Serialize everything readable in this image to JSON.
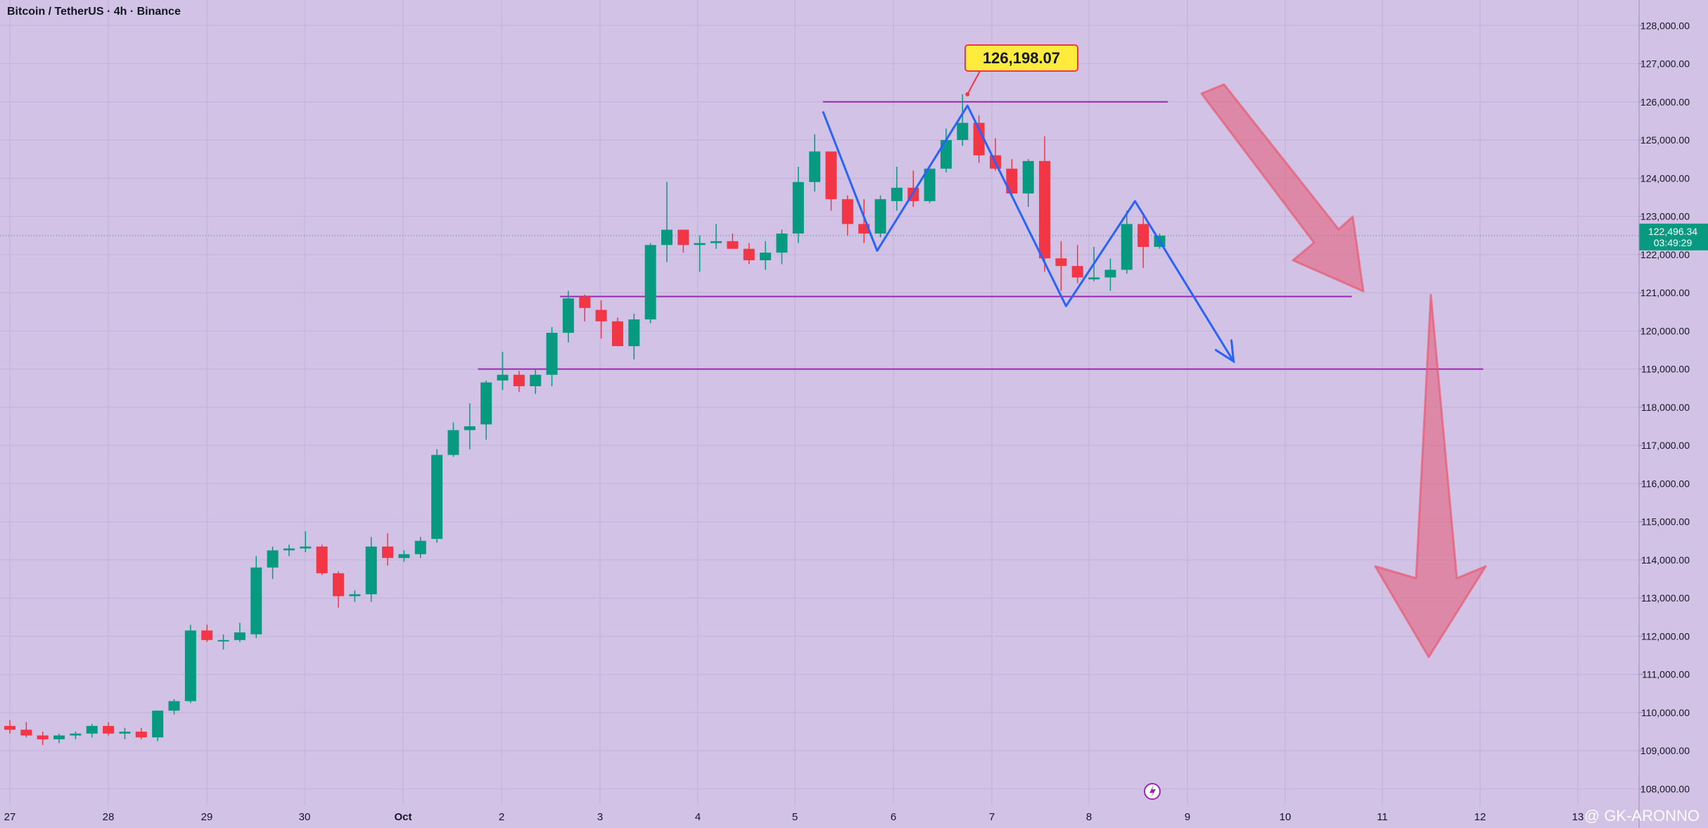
{
  "chart_title": "Bitcoin / TetherUS · 4h · Binance",
  "watermark": "@ GK-ARONNO",
  "colors": {
    "background": "#d1c2e6",
    "up": "#089981",
    "down": "#f23645",
    "pattern": "#2962ff",
    "level": "#9c27b0",
    "arrow": "#e85a72",
    "label_bg": "#ffeb3b",
    "price_tag": "#089981"
  },
  "chart_data": {
    "type": "candlestick",
    "ylim": [
      107750,
      128300
    ],
    "y_ticks": [
      "128,000.00",
      "127,000.00",
      "126,000.00",
      "125,000.00",
      "124,000.00",
      "123,000.00",
      "122,000.00",
      "121,000.00",
      "120,000.00",
      "119,000.00",
      "118,000.00",
      "117,000.00",
      "116,000.00",
      "115,000.00",
      "114,000.00",
      "113,000.00",
      "112,000.00",
      "111,000.00",
      "110,000.00",
      "109,000.00",
      "108,000.00"
    ],
    "x_ticks": [
      "27",
      "28",
      "29",
      "30",
      "Oct",
      "2",
      "3",
      "4",
      "5",
      "6",
      "7",
      "8",
      "9",
      "10",
      "11",
      "12",
      "13"
    ],
    "candles": [
      {
        "o": 109650,
        "h": 109800,
        "l": 109450,
        "c": 109550
      },
      {
        "o": 109550,
        "h": 109750,
        "l": 109350,
        "c": 109400
      },
      {
        "o": 109400,
        "h": 109500,
        "l": 109150,
        "c": 109300
      },
      {
        "o": 109300,
        "h": 109450,
        "l": 109200,
        "c": 109400
      },
      {
        "o": 109400,
        "h": 109500,
        "l": 109300,
        "c": 109450
      },
      {
        "o": 109450,
        "h": 109700,
        "l": 109350,
        "c": 109650
      },
      {
        "o": 109650,
        "h": 109750,
        "l": 109400,
        "c": 109450
      },
      {
        "o": 109450,
        "h": 109600,
        "l": 109300,
        "c": 109500
      },
      {
        "o": 109500,
        "h": 109600,
        "l": 109300,
        "c": 109350
      },
      {
        "o": 109350,
        "h": 110050,
        "l": 109250,
        "c": 110050
      },
      {
        "o": 110050,
        "h": 110350,
        "l": 109950,
        "c": 110300
      },
      {
        "o": 110300,
        "h": 112300,
        "l": 110250,
        "c": 112150
      },
      {
        "o": 112150,
        "h": 112300,
        "l": 111850,
        "c": 111900
      },
      {
        "o": 111900,
        "h": 112050,
        "l": 111650,
        "c": 111900
      },
      {
        "o": 111900,
        "h": 112350,
        "l": 111850,
        "c": 112100
      },
      {
        "o": 112050,
        "h": 114100,
        "l": 111950,
        "c": 113800
      },
      {
        "o": 113800,
        "h": 114350,
        "l": 113500,
        "c": 114250
      },
      {
        "o": 114250,
        "h": 114400,
        "l": 114100,
        "c": 114300
      },
      {
        "o": 114300,
        "h": 114750,
        "l": 114200,
        "c": 114350
      },
      {
        "o": 114350,
        "h": 114400,
        "l": 113600,
        "c": 113650
      },
      {
        "o": 113650,
        "h": 113700,
        "l": 112750,
        "c": 113050
      },
      {
        "o": 113050,
        "h": 113200,
        "l": 112900,
        "c": 113100
      },
      {
        "o": 113100,
        "h": 114600,
        "l": 112900,
        "c": 114350
      },
      {
        "o": 114350,
        "h": 114700,
        "l": 113850,
        "c": 114050
      },
      {
        "o": 114050,
        "h": 114250,
        "l": 113950,
        "c": 114150
      },
      {
        "o": 114150,
        "h": 114600,
        "l": 114050,
        "c": 114500
      },
      {
        "o": 114550,
        "h": 116900,
        "l": 114450,
        "c": 116750
      },
      {
        "o": 116750,
        "h": 117600,
        "l": 116700,
        "c": 117400
      },
      {
        "o": 117400,
        "h": 118100,
        "l": 116900,
        "c": 117500
      },
      {
        "o": 117550,
        "h": 118700,
        "l": 117150,
        "c": 118650
      },
      {
        "o": 118700,
        "h": 119450,
        "l": 118450,
        "c": 118850
      },
      {
        "o": 118850,
        "h": 118950,
        "l": 118400,
        "c": 118550
      },
      {
        "o": 118550,
        "h": 119000,
        "l": 118350,
        "c": 118850
      },
      {
        "o": 118850,
        "h": 120100,
        "l": 118550,
        "c": 119950
      },
      {
        "o": 119950,
        "h": 121050,
        "l": 119700,
        "c": 120850
      },
      {
        "o": 120900,
        "h": 120950,
        "l": 120250,
        "c": 120600
      },
      {
        "o": 120550,
        "h": 120800,
        "l": 119800,
        "c": 120250
      },
      {
        "o": 120250,
        "h": 120350,
        "l": 119600,
        "c": 119600
      },
      {
        "o": 119600,
        "h": 120450,
        "l": 119250,
        "c": 120300
      },
      {
        "o": 120300,
        "h": 122300,
        "l": 120200,
        "c": 122250
      },
      {
        "o": 122250,
        "h": 123900,
        "l": 121800,
        "c": 122650
      },
      {
        "o": 122650,
        "h": 122650,
        "l": 122050,
        "c": 122250
      },
      {
        "o": 122250,
        "h": 122500,
        "l": 121550,
        "c": 122300
      },
      {
        "o": 122300,
        "h": 122800,
        "l": 122150,
        "c": 122350
      },
      {
        "o": 122350,
        "h": 122550,
        "l": 122150,
        "c": 122150
      },
      {
        "o": 122150,
        "h": 122300,
        "l": 121750,
        "c": 121850
      },
      {
        "o": 121850,
        "h": 122350,
        "l": 121600,
        "c": 122050
      },
      {
        "o": 122050,
        "h": 122650,
        "l": 121750,
        "c": 122550
      },
      {
        "o": 122550,
        "h": 124300,
        "l": 122300,
        "c": 123900
      },
      {
        "o": 123900,
        "h": 125150,
        "l": 123650,
        "c": 124700
      },
      {
        "o": 124700,
        "h": 124650,
        "l": 123150,
        "c": 123450
      },
      {
        "o": 123450,
        "h": 123550,
        "l": 122500,
        "c": 122800
      },
      {
        "o": 122800,
        "h": 123450,
        "l": 122300,
        "c": 122550
      },
      {
        "o": 122550,
        "h": 123550,
        "l": 122450,
        "c": 123450
      },
      {
        "o": 123400,
        "h": 124300,
        "l": 123150,
        "c": 123750
      },
      {
        "o": 123750,
        "h": 124200,
        "l": 123250,
        "c": 123400
      },
      {
        "o": 123400,
        "h": 124250,
        "l": 123350,
        "c": 124250
      },
      {
        "o": 124250,
        "h": 125300,
        "l": 124150,
        "c": 125000
      },
      {
        "o": 125000,
        "h": 126198.07,
        "l": 124850,
        "c": 125450
      },
      {
        "o": 125450,
        "h": 125650,
        "l": 124400,
        "c": 124600
      },
      {
        "o": 124600,
        "h": 125050,
        "l": 124200,
        "c": 124250
      },
      {
        "o": 124250,
        "h": 124500,
        "l": 123550,
        "c": 123600
      },
      {
        "o": 123600,
        "h": 124500,
        "l": 123250,
        "c": 124450
      },
      {
        "o": 124450,
        "h": 125100,
        "l": 121550,
        "c": 121900
      },
      {
        "o": 121900,
        "h": 122350,
        "l": 121050,
        "c": 121700
      },
      {
        "o": 121700,
        "h": 122250,
        "l": 121250,
        "c": 121400
      },
      {
        "o": 121350,
        "h": 122200,
        "l": 121300,
        "c": 121400
      },
      {
        "o": 121400,
        "h": 121900,
        "l": 121050,
        "c": 121600
      },
      {
        "o": 121600,
        "h": 123150,
        "l": 121500,
        "c": 122800
      },
      {
        "o": 122800,
        "h": 123100,
        "l": 121650,
        "c": 122200
      },
      {
        "o": 122200,
        "h": 122550,
        "l": 122150,
        "c": 122496.34
      }
    ],
    "levels": [
      {
        "price": 126000,
        "start": 49.5,
        "end": 70.5
      },
      {
        "price": 120900,
        "start": 33.5,
        "end": 81.7
      },
      {
        "price": 119000,
        "start": 28.5,
        "end": 89.7
      }
    ],
    "pattern_path": [
      {
        "x": 49.5,
        "y": 125750
      },
      {
        "x": 52.8,
        "y": 122100
      },
      {
        "x": 58.3,
        "y": 125900
      },
      {
        "x": 64.3,
        "y": 120650
      },
      {
        "x": 68.5,
        "y": 123400
      },
      {
        "x": 74.5,
        "y": 119200
      }
    ],
    "peak_label": "126,198.07",
    "peak_marker": {
      "x": 58.3,
      "y": 126198.07
    },
    "current_price": {
      "value": "122,496.34",
      "countdown": "03:49:29",
      "y": 122496.34
    }
  }
}
